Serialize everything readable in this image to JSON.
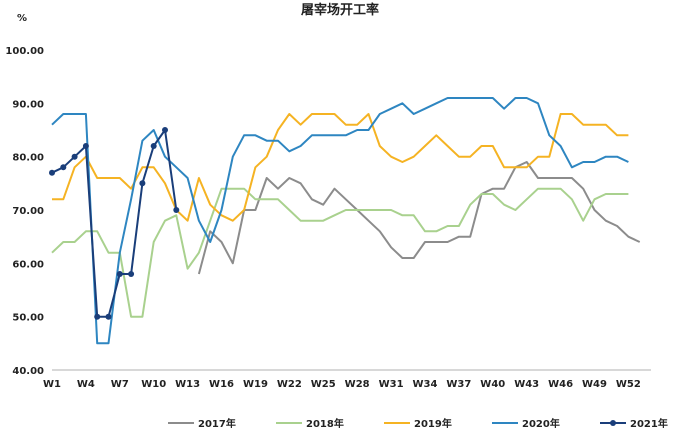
{
  "chart_data": {
    "type": "line",
    "title": "屠宰场开工率",
    "unit": "%",
    "xlabel": "",
    "ylabel": "",
    "ylim": [
      40,
      100
    ],
    "yticks": [
      "100.00",
      "90.00",
      "80.00",
      "70.00",
      "60.00",
      "50.00",
      "40.00"
    ],
    "x_ticks": [
      "W1",
      "W4",
      "W7",
      "W10",
      "W13",
      "W16",
      "W19",
      "W22",
      "W25",
      "W28",
      "W31",
      "W34",
      "W37",
      "W40",
      "W43",
      "W46",
      "W49",
      "W52"
    ],
    "x_tick_weeks": [
      1,
      4,
      7,
      10,
      13,
      16,
      19,
      22,
      25,
      28,
      31,
      34,
      37,
      40,
      43,
      46,
      49,
      52
    ],
    "x_range_weeks": [
      1,
      54
    ],
    "grid": false,
    "legend_position": "bottom",
    "series": [
      {
        "name": "2017年",
        "color": "#8c8c8c",
        "marker": false,
        "start_week": 14,
        "values": [
          58,
          66,
          64,
          60,
          70,
          70,
          76,
          74,
          76,
          75,
          72,
          71,
          74,
          72,
          70,
          68,
          66,
          63,
          61,
          61,
          64,
          64,
          64,
          65,
          65,
          73,
          74,
          74,
          78,
          79,
          76,
          76,
          76,
          76,
          74,
          70,
          68,
          67,
          65,
          64
        ]
      },
      {
        "name": "2018年",
        "color": "#a9d18e",
        "marker": false,
        "start_week": 1,
        "values": [
          62,
          64,
          64,
          66,
          66,
          62,
          62,
          50,
          50,
          64,
          68,
          69,
          59,
          62,
          68,
          74,
          74,
          74,
          72,
          72,
          72,
          70,
          68,
          68,
          68,
          69,
          70,
          70,
          70,
          70,
          70,
          69,
          69,
          66,
          66,
          67,
          67,
          71,
          73,
          73,
          71,
          70,
          72,
          74,
          74,
          74,
          72,
          68,
          72,
          73,
          73,
          73
        ]
      },
      {
        "name": "2019年",
        "color": "#f5b323",
        "marker": false,
        "start_week": 1,
        "values": [
          72,
          72,
          78,
          80,
          76,
          76,
          76,
          74,
          78,
          78,
          75,
          70,
          68,
          76,
          71,
          69,
          68,
          70,
          78,
          80,
          85,
          88,
          86,
          88,
          88,
          88,
          86,
          86,
          88,
          82,
          80,
          79,
          80,
          82,
          84,
          82,
          80,
          80,
          82,
          82,
          78,
          78,
          78,
          80,
          80,
          88,
          88,
          86,
          86,
          86,
          84,
          84
        ]
      },
      {
        "name": "2020年",
        "color": "#2e86c1",
        "marker": false,
        "start_week": 1,
        "values": [
          86,
          88,
          88,
          88,
          45,
          45,
          62,
          72,
          83,
          85,
          80,
          78,
          76,
          68,
          64,
          70,
          80,
          84,
          84,
          83,
          83,
          81,
          82,
          84,
          84,
          84,
          84,
          85,
          85,
          88,
          89,
          90,
          88,
          89,
          90,
          91,
          91,
          91,
          91,
          91,
          89,
          91,
          91,
          90,
          84,
          82,
          78,
          79,
          79,
          80,
          80,
          79
        ]
      },
      {
        "name": "2021年",
        "color": "#1a3e7a",
        "marker": true,
        "start_week": 1,
        "values": [
          77,
          78,
          80,
          82,
          50,
          50,
          58,
          58,
          75,
          82,
          85,
          70
        ]
      }
    ]
  }
}
